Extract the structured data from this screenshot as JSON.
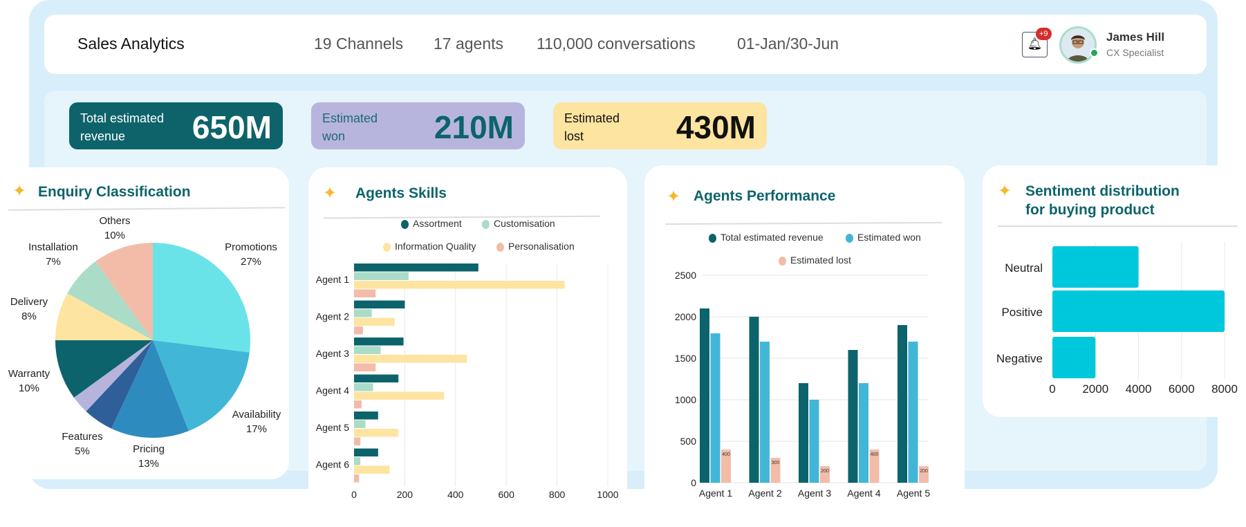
{
  "header": {
    "title": "Sales Analytics",
    "stats": [
      "19 Channels",
      "17 agents",
      "110,000 conversations",
      "01-Jan/30-Jun"
    ],
    "notifications_badge": "+9",
    "user": {
      "name": "James Hill",
      "role": "CX Specialist",
      "status": "online"
    }
  },
  "kpis": [
    {
      "label": "Total estimated revenue",
      "value": "650M",
      "bg": "#0e636b"
    },
    {
      "label": "Estimated won",
      "value": "210M",
      "bg": "#b7b5dd"
    },
    {
      "label": "Estimated lost",
      "value": "430M",
      "bg": "#fde4a0"
    }
  ],
  "cards": {
    "enquiry": "Enquiry Classification",
    "skills": "Agents Skills",
    "performance": "Agents Performance",
    "sentiment": [
      "Sentiment distribution",
      "for buying product"
    ]
  },
  "chart_data": [
    {
      "type": "pie",
      "title": "Enquiry Classification",
      "slices": [
        {
          "label": "Promotions",
          "pct": "27%",
          "value": 27,
          "color": "#6ae3e8"
        },
        {
          "label": "Availability",
          "pct": "17%",
          "value": 17,
          "color": "#42b6d6"
        },
        {
          "label": "Pricing",
          "pct": "13%",
          "value": 13,
          "color": "#2e8bbd"
        },
        {
          "label": "Features",
          "pct": "5%",
          "value": 5,
          "color": "#2e5f99"
        },
        {
          "label": "",
          "pct": "",
          "value": 3,
          "color": "#b6b4dd"
        },
        {
          "label": "Warranty",
          "pct": "10%",
          "value": 10,
          "color": "#0d636b"
        },
        {
          "label": "Delivery",
          "pct": "8%",
          "value": 8,
          "color": "#fde4a0"
        },
        {
          "label": "Installation",
          "pct": "7%",
          "value": 7,
          "color": "#abdcc8"
        },
        {
          "label": "Others",
          "pct": "10%",
          "value": 10,
          "color": "#f3bca8"
        }
      ]
    },
    {
      "type": "bar",
      "orientation": "horizontal",
      "title": "Agents Skills",
      "categories": [
        "Agent 1",
        "Agent 2",
        "Agent 3",
        "Agent 4",
        "Agent 5",
        "Agent 6"
      ],
      "xlim": [
        0,
        1000
      ],
      "xticks": [
        0,
        200,
        400,
        600,
        800,
        1000
      ],
      "grid": true,
      "legend": "top",
      "series": [
        {
          "name": "Assortment",
          "color": "#0d636b",
          "values": [
            490,
            200,
            195,
            175,
            95,
            95
          ]
        },
        {
          "name": "Customisation",
          "color": "#abdcc8",
          "values": [
            215,
            70,
            105,
            75,
            45,
            25
          ]
        },
        {
          "name": "Information Quality",
          "color": "#fde4a0",
          "values": [
            830,
            160,
            445,
            355,
            175,
            140
          ]
        },
        {
          "name": "Personalisation",
          "color": "#f3bca8",
          "values": [
            85,
            35,
            85,
            30,
            25,
            20
          ]
        }
      ]
    },
    {
      "type": "bar",
      "orientation": "vertical",
      "title": "Agents Performance",
      "categories": [
        "Agent 1",
        "Agent 2",
        "Agent 3",
        "Agent 4",
        "Agent 5"
      ],
      "ylim": [
        0,
        2500
      ],
      "yticks": [
        0,
        500,
        1000,
        1500,
        2000,
        2500
      ],
      "grid": true,
      "legend": "top",
      "series": [
        {
          "name": "Total estimated revenue",
          "color": "#0d636b",
          "values": [
            2100,
            2000,
            1200,
            1600,
            1900
          ]
        },
        {
          "name": "Estimated won",
          "color": "#42b6d6",
          "values": [
            1800,
            1700,
            1000,
            1200,
            1700
          ]
        },
        {
          "name": "Estimated lost",
          "color": "#f3bca8",
          "values": [
            400,
            300,
            200,
            400,
            200
          ],
          "data_labels": true
        }
      ]
    },
    {
      "type": "bar",
      "orientation": "horizontal",
      "title": "Sentiment distribution for buying product",
      "categories": [
        "Neutral",
        "Positive",
        "Negative"
      ],
      "values": [
        4000,
        8000,
        2000
      ],
      "color": "#00c8dc",
      "xlim": [
        0,
        8000
      ],
      "xticks": [
        0,
        2000,
        4000,
        6000,
        8000
      ],
      "grid": true
    }
  ]
}
